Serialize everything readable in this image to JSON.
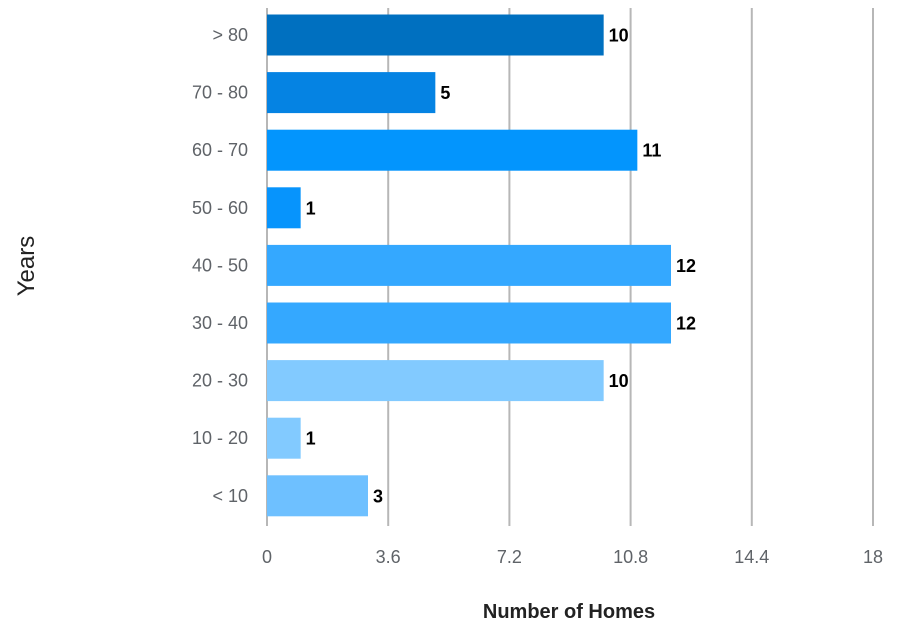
{
  "chart_data": {
    "type": "bar",
    "orientation": "horizontal",
    "title": "",
    "xlabel": "Number of Homes",
    "ylabel": "Years",
    "xlim": [
      0,
      18
    ],
    "x_ticks": [
      "0",
      "3.6",
      "7.2",
      "10.8",
      "14.4",
      "18"
    ],
    "x_tick_values": [
      0,
      3.6,
      7.2,
      10.8,
      14.4,
      18
    ],
    "grid": true,
    "legend": "none",
    "categories": [
      "> 80",
      "70 - 80",
      "60 - 70",
      "50 - 60",
      "40 - 50",
      "30 - 40",
      "20 - 30",
      "10 - 20",
      "< 10"
    ],
    "values": [
      10,
      5,
      11,
      1,
      12,
      12,
      10,
      1,
      3
    ],
    "data_labels": [
      "10",
      "5",
      "11",
      "1",
      "12",
      "12",
      "10",
      "1",
      "3"
    ],
    "colors": [
      "#0070c0",
      "#0583e3",
      "#0395fd",
      "#0794fc",
      "#34a8ff",
      "#34a8ff",
      "#82caff",
      "#82caff",
      "#6ec0ff"
    ]
  }
}
